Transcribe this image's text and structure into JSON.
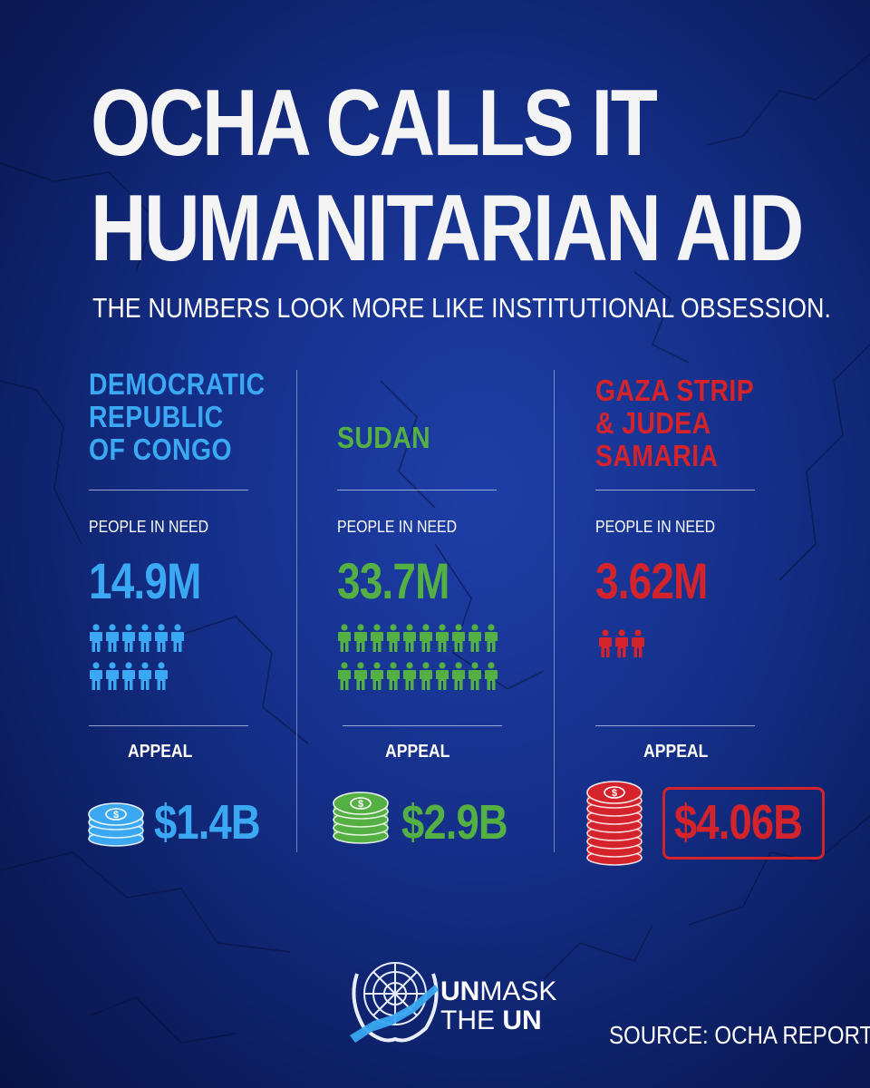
{
  "title_line1": "OCHA CALLS IT",
  "title_line2": "HUMANITARIAN AID",
  "subtitle": "THE NUMBERS LOOK MORE LIKE INSTITUTIONAL OBSESSION.",
  "columns": [
    {
      "region_lines": [
        "DEMOCRATIC",
        "REPUBLIC",
        "OF CONGO"
      ],
      "people_label": "PEOPLE IN NEED",
      "people_value": "14.9M",
      "people_icon_count": 11,
      "appeal_label": "APPEAL",
      "appeal_value": "$1.4B",
      "coin_count": 3,
      "color": "#3aa8f2"
    },
    {
      "region_lines": [
        "SUDAN"
      ],
      "people_label": "PEOPLE IN NEED",
      "people_value": "33.7M",
      "people_icon_count": 20,
      "appeal_label": "APPEAL",
      "appeal_value": "$2.9B",
      "coin_count": 4,
      "color": "#55b043"
    },
    {
      "region_lines": [
        "GAZA STRIP",
        "& JUDEA",
        "SAMARIA"
      ],
      "people_label": "PEOPLE IN NEED",
      "people_value": "3.62M",
      "people_icon_count": 3,
      "appeal_label": "APPEAL",
      "appeal_value": "$4.06B",
      "coin_count": 8,
      "color": "#d5232b"
    }
  ],
  "brand": {
    "line1_bold": "UN",
    "line1_rest": "MASK",
    "line2_rest": "THE ",
    "line2_bold": "UN"
  },
  "source": "SOURCE: OCHA REPORTS",
  "icons": [
    "person-icon",
    "coin-stack-icon",
    "un-emblem-icon"
  ]
}
